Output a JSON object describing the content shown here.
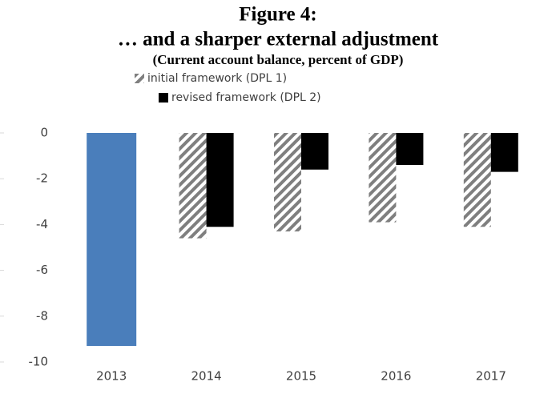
{
  "chart_data": {
    "type": "bar",
    "title": "Figure 4:",
    "subtitle": "… and a sharper external adjustment",
    "y_label": "(Current account balance, percent of GDP)",
    "categories": [
      "2013",
      "2014",
      "2015",
      "2016",
      "2017"
    ],
    "series": [
      {
        "color": "#4a7ebb",
        "values": [
          -9.3,
          null,
          null,
          null,
          null
        ]
      },
      {
        "name": "initial framework (DPL 1)",
        "color": "#7f7f7f",
        "hatch": true,
        "values": [
          null,
          -4.6,
          -4.3,
          -3.9,
          -4.1
        ]
      },
      {
        "name": "revised framework (DPL 2)",
        "color": "#000000",
        "values": [
          null,
          -4.1,
          -1.6,
          -1.4,
          -1.7
        ]
      }
    ],
    "ylim": [
      -10,
      0
    ],
    "yticks": [
      0,
      -2,
      -4,
      -6,
      -8,
      -10
    ],
    "legend": "top"
  }
}
